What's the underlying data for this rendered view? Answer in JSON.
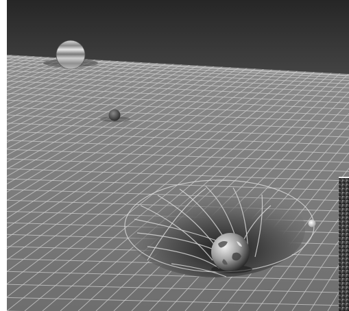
{
  "scene": {
    "kind": "spacetime-curvature-illustration",
    "palette": "grayscale",
    "colors": {
      "sky_top": "#2b2b2b",
      "sky_bottom": "#9a9a9a",
      "plane": "#7d7d7d",
      "grid_line": "#c9c9c9",
      "border": "#000000"
    },
    "objects": [
      {
        "name": "jupiter",
        "icon": "gas-giant-planet"
      },
      {
        "name": "small-planet",
        "icon": "small-rocky-planet"
      },
      {
        "name": "earth",
        "icon": "earth-globe"
      },
      {
        "name": "moon",
        "icon": "small-moon"
      }
    ],
    "features": [
      "warped-grid-plane",
      "gravity-well",
      "orbit-ellipse",
      "inset-photo-corner"
    ]
  }
}
